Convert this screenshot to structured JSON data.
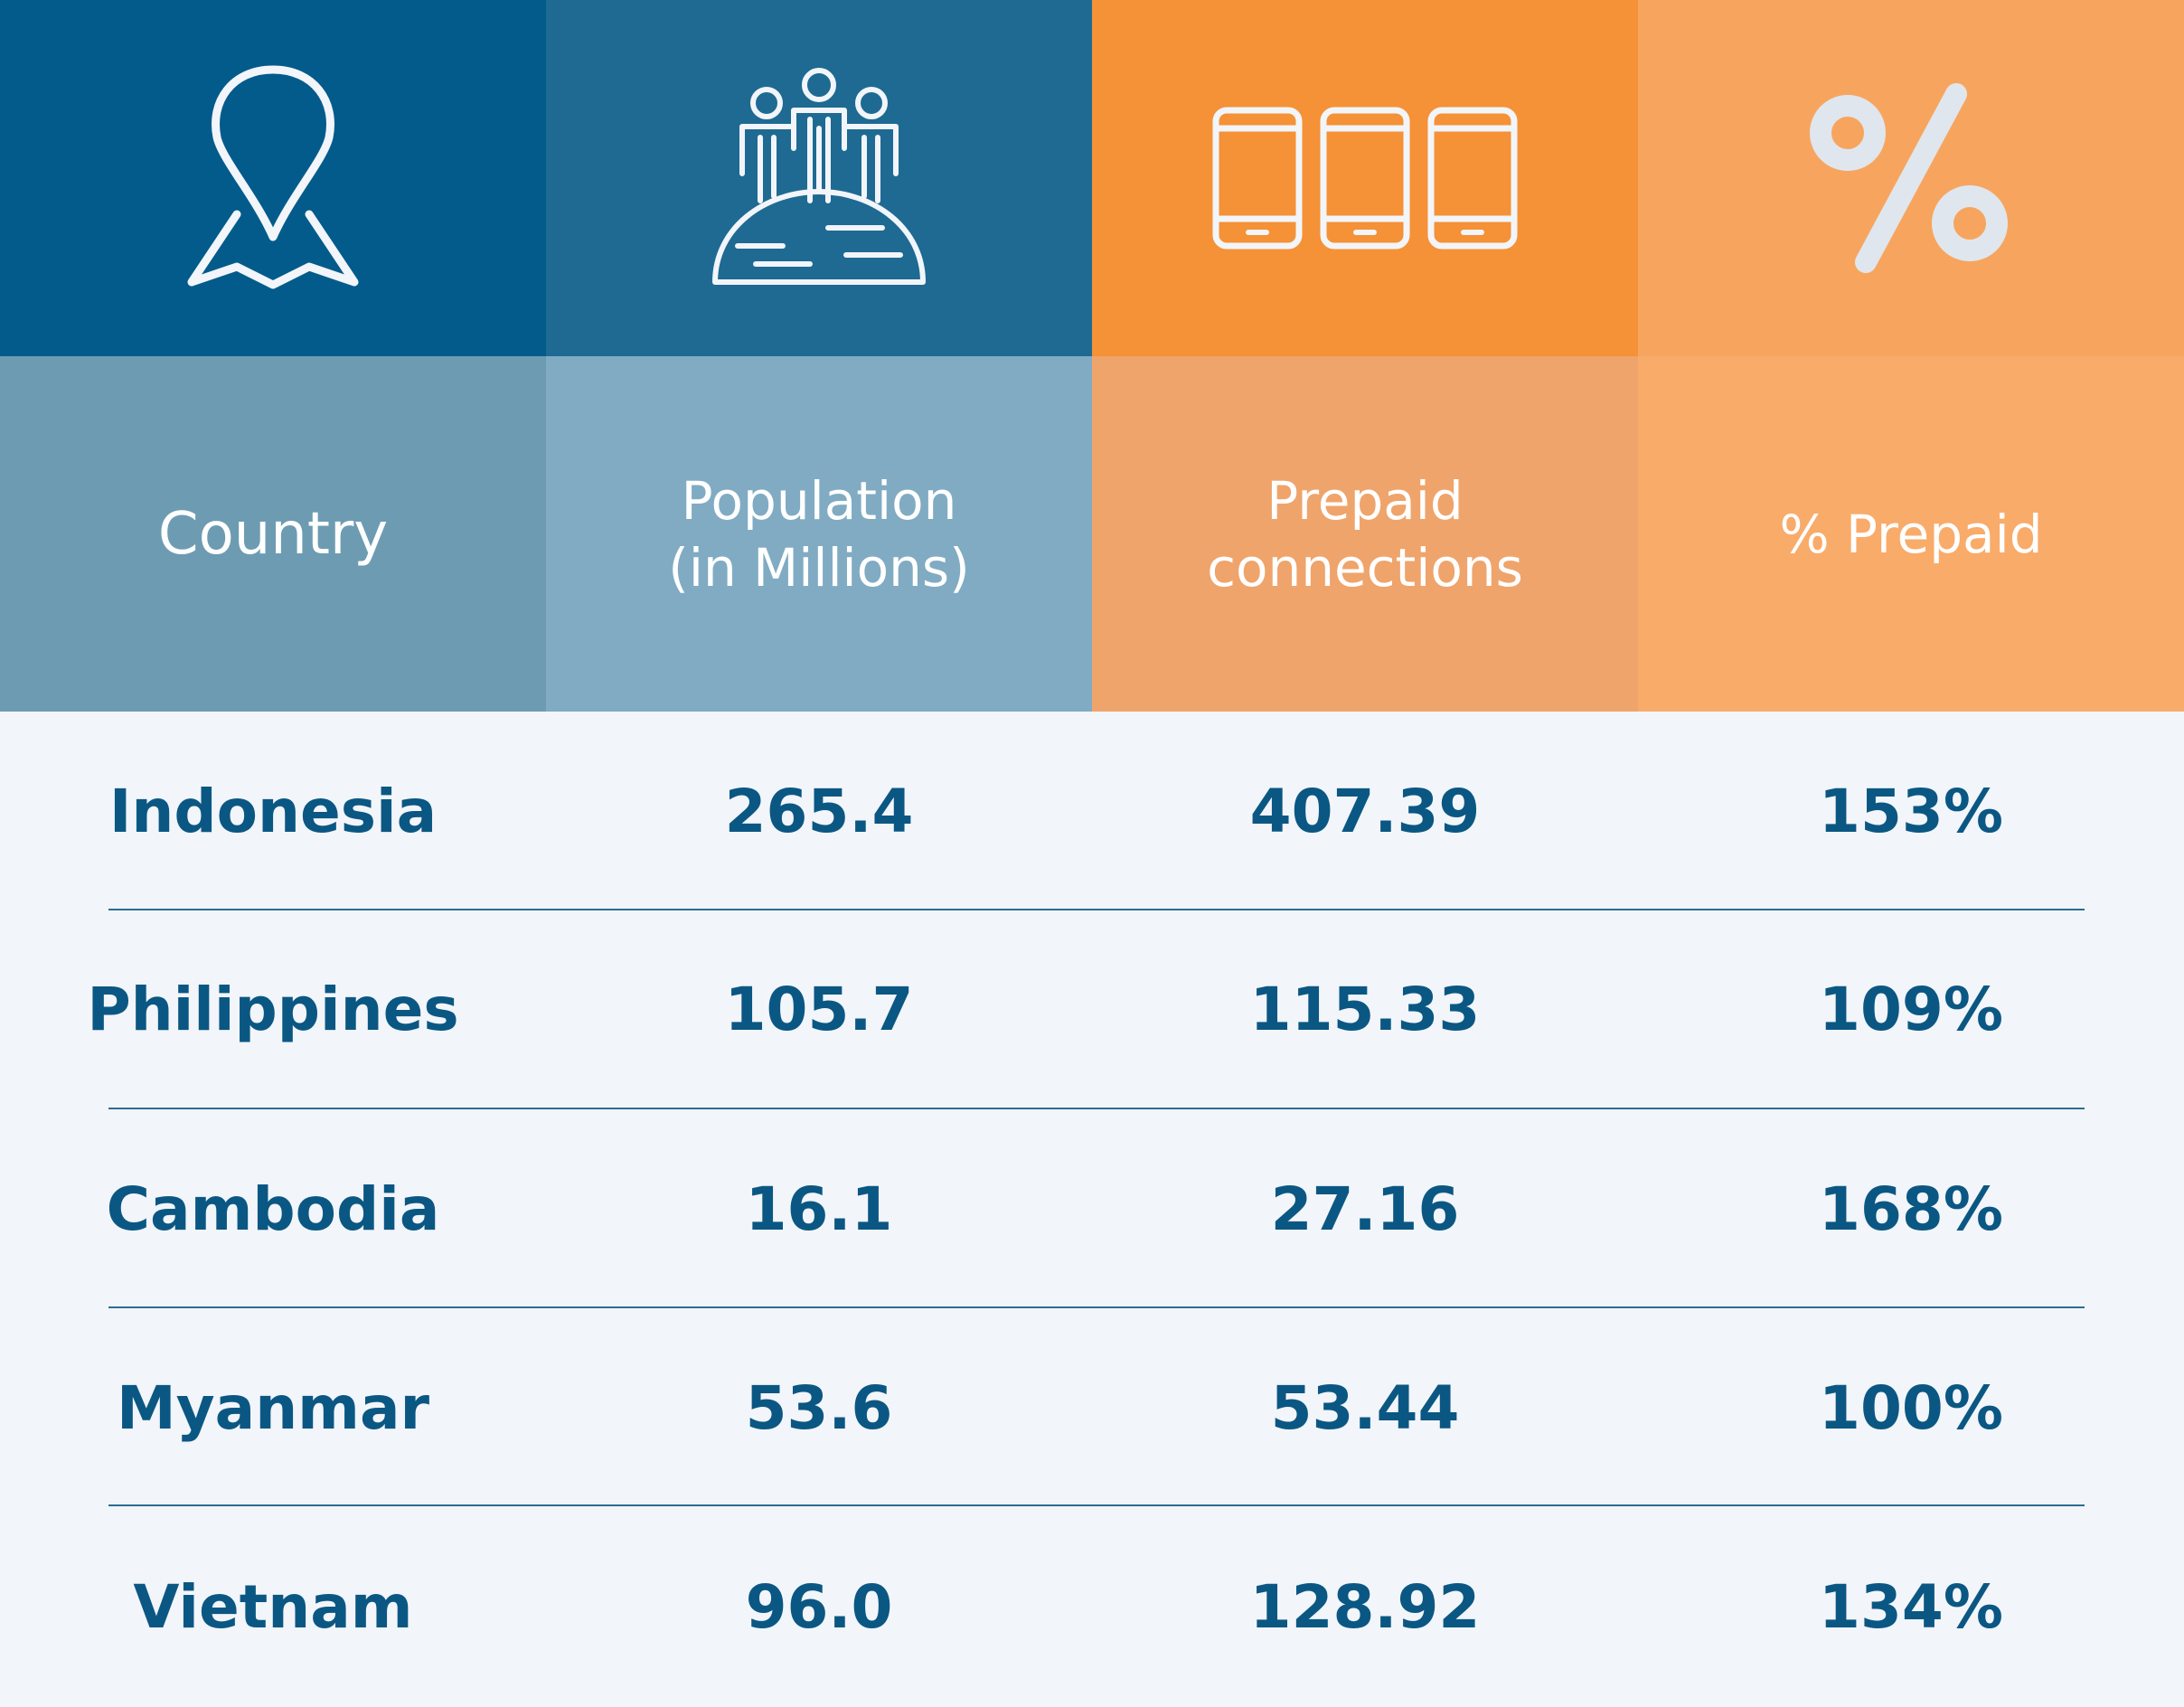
{
  "columns": [
    {
      "label": "Country",
      "icon": "map-pin-icon",
      "icon_bg": "#035b8b",
      "header_bg": "#6d9cb2"
    },
    {
      "label": "Population\n(in Millions)",
      "icon": "people-on-globe-icon",
      "icon_bg": "#1e6a93",
      "header_bg": "#80abc3"
    },
    {
      "label": "Prepaid\nconnections",
      "icon": "mobile-phones-icon",
      "icon_bg": "#f59136",
      "header_bg": "#efa46b"
    },
    {
      "label": "% Prepaid",
      "icon": "percent-icon",
      "icon_bg": "#f7a55e",
      "header_bg": "#f9ab6a"
    }
  ],
  "rows": [
    {
      "country": "Indonesia",
      "population": "265.4",
      "prepaid": "407.39",
      "pct": "153%"
    },
    {
      "country": "Philippines",
      "population": "105.7",
      "prepaid": "115.33",
      "pct": "109%"
    },
    {
      "country": "Cambodia",
      "population": "16.1",
      "prepaid": "27.16",
      "pct": "168%"
    },
    {
      "country": "Myanmar",
      "population": "53.6",
      "prepaid": "53.44",
      "pct": "100%"
    },
    {
      "country": "Vietnam",
      "population": "96.0",
      "prepaid": "128.92",
      "pct": "134%"
    }
  ],
  "chart_data": {
    "type": "table",
    "columns": [
      "Country",
      "Population (in Millions)",
      "Prepaid connections",
      "% Prepaid"
    ],
    "rows": [
      [
        "Indonesia",
        265.4,
        407.39,
        "153%"
      ],
      [
        "Philippines",
        105.7,
        115.33,
        "109%"
      ],
      [
        "Cambodia",
        16.1,
        27.16,
        "168%"
      ],
      [
        "Myanmar",
        53.6,
        53.44,
        "100%"
      ],
      [
        "Vietnam",
        96.0,
        128.92,
        "134%"
      ]
    ]
  },
  "colors": {
    "body_bg": "#f2f5f9",
    "text": "#0b5783",
    "separator": "#2b6d92",
    "icon_stroke": "#f2f5f9"
  }
}
